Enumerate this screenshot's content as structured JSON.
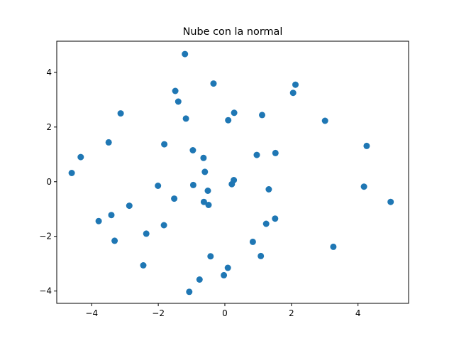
{
  "chart_data": {
    "type": "scatter",
    "title": "Nube con la normal",
    "xlabel": "",
    "ylabel": "",
    "xlim": [
      -5.05,
      5.52
    ],
    "ylim": [
      -4.45,
      5.14
    ],
    "xticks": [
      -4,
      -2,
      0,
      2,
      4
    ],
    "yticks": [
      -4,
      -2,
      0,
      2,
      4
    ],
    "xtick_labels": [
      "−4",
      "−2",
      "0",
      "2",
      "4"
    ],
    "ytick_labels": [
      "−4",
      "−2",
      "0",
      "2",
      "4"
    ],
    "grid": false,
    "marker_color": "#1f77b4",
    "points": [
      {
        "x": -1.2,
        "y": 4.67
      },
      {
        "x": -0.34,
        "y": 3.59
      },
      {
        "x": 2.12,
        "y": 3.55
      },
      {
        "x": 2.05,
        "y": 3.25
      },
      {
        "x": -1.49,
        "y": 3.32
      },
      {
        "x": -1.4,
        "y": 2.93
      },
      {
        "x": -3.13,
        "y": 2.5
      },
      {
        "x": -1.17,
        "y": 2.31
      },
      {
        "x": 0.28,
        "y": 2.52
      },
      {
        "x": 0.1,
        "y": 2.25
      },
      {
        "x": 1.12,
        "y": 2.44
      },
      {
        "x": 3.01,
        "y": 2.23
      },
      {
        "x": -3.49,
        "y": 1.44
      },
      {
        "x": -1.82,
        "y": 1.37
      },
      {
        "x": 4.26,
        "y": 1.31
      },
      {
        "x": -4.33,
        "y": 0.9
      },
      {
        "x": -0.96,
        "y": 1.15
      },
      {
        "x": -0.64,
        "y": 0.87
      },
      {
        "x": 0.96,
        "y": 0.98
      },
      {
        "x": 1.52,
        "y": 1.05
      },
      {
        "x": -4.6,
        "y": 0.32
      },
      {
        "x": -0.6,
        "y": 0.36
      },
      {
        "x": 0.27,
        "y": 0.06
      },
      {
        "x": -2.01,
        "y": -0.15
      },
      {
        "x": -0.95,
        "y": -0.12
      },
      {
        "x": 0.21,
        "y": -0.09
      },
      {
        "x": -0.51,
        "y": -0.33
      },
      {
        "x": 1.32,
        "y": -0.28
      },
      {
        "x": 4.18,
        "y": -0.18
      },
      {
        "x": -1.52,
        "y": -0.62
      },
      {
        "x": -2.87,
        "y": -0.88
      },
      {
        "x": -0.63,
        "y": -0.74
      },
      {
        "x": -0.49,
        "y": -0.85
      },
      {
        "x": 4.98,
        "y": -0.74
      },
      {
        "x": -3.41,
        "y": -1.22
      },
      {
        "x": -3.79,
        "y": -1.44
      },
      {
        "x": -1.83,
        "y": -1.59
      },
      {
        "x": 1.51,
        "y": -1.35
      },
      {
        "x": 1.24,
        "y": -1.54
      },
      {
        "x": -2.36,
        "y": -1.9
      },
      {
        "x": -3.31,
        "y": -2.16
      },
      {
        "x": 0.84,
        "y": -2.2
      },
      {
        "x": 3.26,
        "y": -2.38
      },
      {
        "x": -0.43,
        "y": -2.73
      },
      {
        "x": 1.08,
        "y": -2.72
      },
      {
        "x": -2.45,
        "y": -3.06
      },
      {
        "x": 0.09,
        "y": -3.15
      },
      {
        "x": -0.03,
        "y": -3.42
      },
      {
        "x": -0.76,
        "y": -3.58
      },
      {
        "x": -1.07,
        "y": -4.03
      }
    ]
  }
}
